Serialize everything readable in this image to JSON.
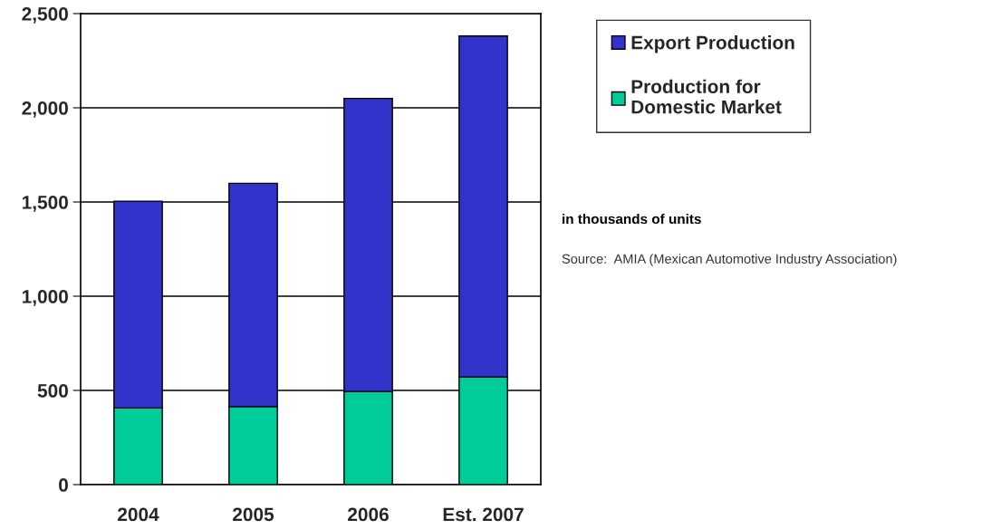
{
  "chart_data": {
    "type": "bar",
    "stacked": true,
    "categories": [
      "2004",
      "2005",
      "2006",
      "Est. 2007"
    ],
    "series": [
      {
        "name": "Production for Domestic Market",
        "color": "#00cc99",
        "values": [
          407,
          414,
          494,
          571
        ]
      },
      {
        "name": "Export Production",
        "color": "#3333cc",
        "values": [
          1097,
          1185,
          1556,
          1810
        ]
      }
    ],
    "ylim": [
      0,
      2500
    ],
    "yticks": [
      {
        "value": 0,
        "label": "0"
      },
      {
        "value": 500,
        "label": "500"
      },
      {
        "value": 1000,
        "label": "1,000"
      },
      {
        "value": 1500,
        "label": "1,500"
      },
      {
        "value": 2000,
        "label": "2,000"
      },
      {
        "value": 2500,
        "label": "2,500"
      }
    ],
    "grid": "y",
    "legend": "top right",
    "annotations": [
      "in thousands of units",
      "Source:  AMIA (Mexican Automotive Industry Association)"
    ]
  }
}
